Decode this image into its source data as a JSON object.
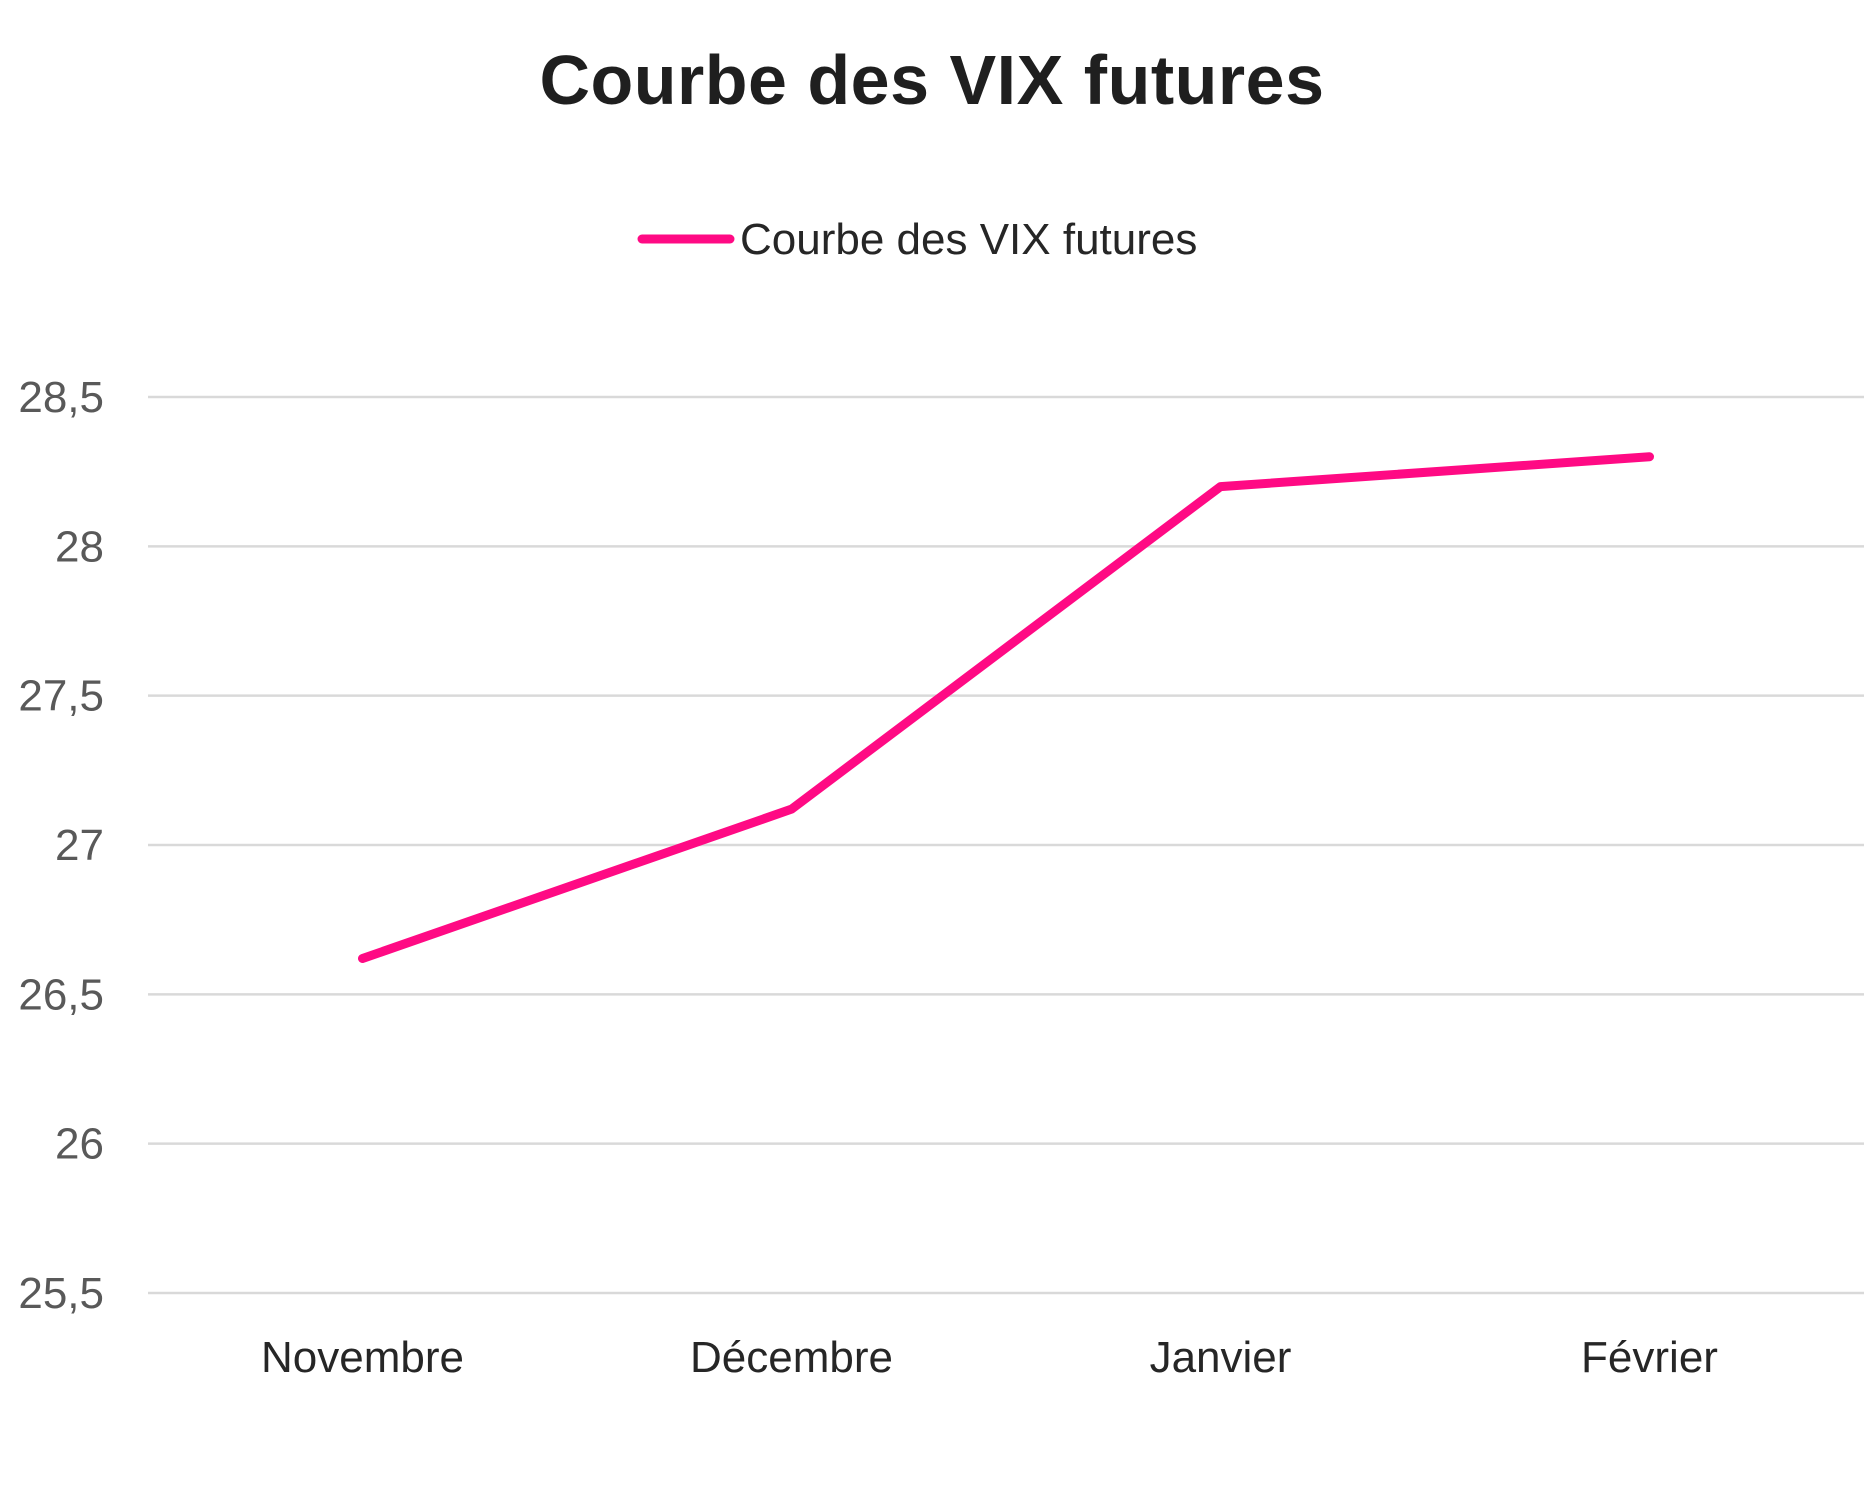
{
  "chart_data": {
    "type": "line",
    "title": "Courbe des VIX futures",
    "xlabel": "",
    "ylabel": "",
    "categories": [
      "Novembre",
      "Décembre",
      "Janvier",
      "Février"
    ],
    "series": [
      {
        "name": "Courbe des VIX futures",
        "values": [
          26.62,
          27.12,
          28.2,
          28.3
        ],
        "color": "#ff0a84"
      }
    ],
    "ylim": [
      25.5,
      28.5
    ],
    "yticks": [
      25.5,
      26,
      26.5,
      27,
      27.5,
      28,
      28.5
    ],
    "ytick_labels": [
      "25,5",
      "26",
      "26,5",
      "27",
      "27,5",
      "28",
      "28,5"
    ],
    "grid": true,
    "legend_position": "top-center"
  }
}
